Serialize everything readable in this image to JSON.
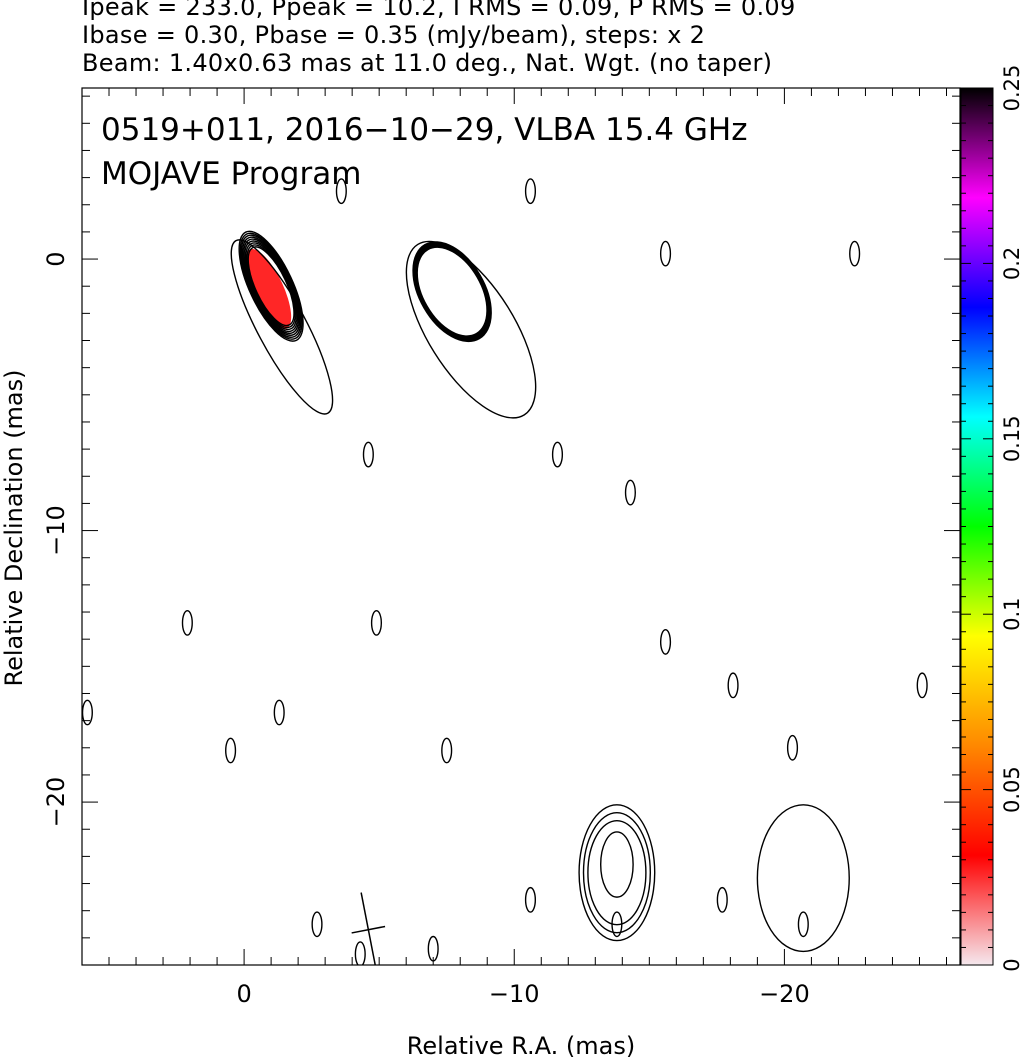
{
  "header": {
    "line1": "Ipeak = 233.0, Ppeak = 10.2, I RMS = 0.09, P RMS = 0.09",
    "line2": "Ibase = 0.30, Pbase = 0.35 (mJy/beam), steps: x 2",
    "line3": "Beam: 1.40x0.63 mas at 11.0 deg., Nat. Wgt. (no taper)"
  },
  "chart_data": {
    "type": "contour",
    "title_line1": "0519+011, 2016−10−29, VLBA 15.4 GHz",
    "title_line2": "MOJAVE Program",
    "xlabel": "Relative R.A. (mas)",
    "ylabel": "Relative Declination (mas)",
    "xlim": [
      6,
      -26.5
    ],
    "ylim": [
      -26,
      6.3
    ],
    "x_reversed": true,
    "x_ticks": [
      0,
      -10,
      -20
    ],
    "x_tick_labels": [
      "0",
      "−10",
      "−20"
    ],
    "y_ticks": [
      0,
      -10,
      -20
    ],
    "y_tick_labels": [
      "0",
      "−10",
      "−20"
    ],
    "colorbar": {
      "min": 0,
      "max": 0.25,
      "ticks": [
        0,
        0.05,
        0.1,
        0.15,
        0.2,
        0.25
      ],
      "tick_labels": [
        "0",
        "0.05",
        "0.1",
        "0.15",
        "0.2",
        "0.25"
      ],
      "colormap": [
        "#f5e8ee",
        "#ff0000",
        "#ff8800",
        "#ffff00",
        "#00ff00",
        "#00ffff",
        "#0000ff",
        "#ff00ff",
        "#000000"
      ]
    },
    "beam": {
      "major_mas": 1.4,
      "minor_mas": 0.63,
      "pa_deg": 11.0,
      "x": -4.6,
      "y": -24.7
    },
    "contour_levels_mJy": [
      0.3,
      0.6,
      1.2,
      2.4,
      4.8,
      9.6,
      19.2,
      38.4,
      76.8,
      153.6
    ],
    "components": [
      {
        "name": "core",
        "x": -1.0,
        "y": -1.0,
        "rx": 0.8,
        "ry": 2.2,
        "rot": -25,
        "n": 9,
        "step": 0.32
      },
      {
        "name": "core-jet",
        "x": -1.4,
        "y": -2.5,
        "rx": 0.9,
        "ry": 3.6,
        "rot": -28,
        "n": 1,
        "step": 0
      },
      {
        "name": "secondary",
        "x": -7.7,
        "y": -1.2,
        "rx": 1.2,
        "ry": 2.0,
        "rot": -30,
        "n": 9,
        "step": 0.12
      },
      {
        "name": "secondary-jet",
        "x": -8.4,
        "y": -2.6,
        "rx": 1.6,
        "ry": 3.7,
        "rot": -32,
        "n": 1,
        "step": 0
      },
      {
        "name": "south-1",
        "x": -13.8,
        "y": -22.6,
        "rx": 1.4,
        "ry": 2.5,
        "rot": 0,
        "n": 3,
        "step": 0.35
      },
      {
        "name": "south-1-inner",
        "x": -13.8,
        "y": -22.3,
        "rx": 0.6,
        "ry": 1.2,
        "rot": 0,
        "n": 1,
        "step": 0
      },
      {
        "name": "south-2",
        "x": -20.7,
        "y": -22.8,
        "rx": 1.7,
        "ry": 2.7,
        "rot": 0,
        "n": 1,
        "step": 0
      }
    ],
    "polarization": [
      {
        "x": -0.9,
        "y": -1.1,
        "rx": 0.55,
        "ry": 1.6,
        "rot": -25,
        "level": 0.045
      }
    ],
    "noise_islands": [
      {
        "x": -3.6,
        "y": 2.5
      },
      {
        "x": -10.6,
        "y": 2.5
      },
      {
        "x": -15.6,
        "y": 0.2
      },
      {
        "x": -22.6,
        "y": 0.2
      },
      {
        "x": -4.6,
        "y": -7.2
      },
      {
        "x": -11.6,
        "y": -7.2
      },
      {
        "x": -14.3,
        "y": -8.6
      },
      {
        "x": 2.1,
        "y": -13.4
      },
      {
        "x": -4.9,
        "y": -13.4
      },
      {
        "x": -15.6,
        "y": -14.1
      },
      {
        "x": -18.1,
        "y": -15.7
      },
      {
        "x": -25.1,
        "y": -15.7
      },
      {
        "x": 5.8,
        "y": -16.7
      },
      {
        "x": -1.3,
        "y": -16.7
      },
      {
        "x": -20.3,
        "y": -18.0
      },
      {
        "x": 0.5,
        "y": -18.1
      },
      {
        "x": -7.5,
        "y": -18.1
      },
      {
        "x": -10.6,
        "y": -23.6
      },
      {
        "x": -17.7,
        "y": -23.6
      },
      {
        "x": -2.7,
        "y": -24.5
      },
      {
        "x": -4.3,
        "y": -25.6
      },
      {
        "x": -7.0,
        "y": -25.4
      },
      {
        "x": -13.8,
        "y": -24.5
      },
      {
        "x": -20.7,
        "y": -24.5
      }
    ]
  }
}
